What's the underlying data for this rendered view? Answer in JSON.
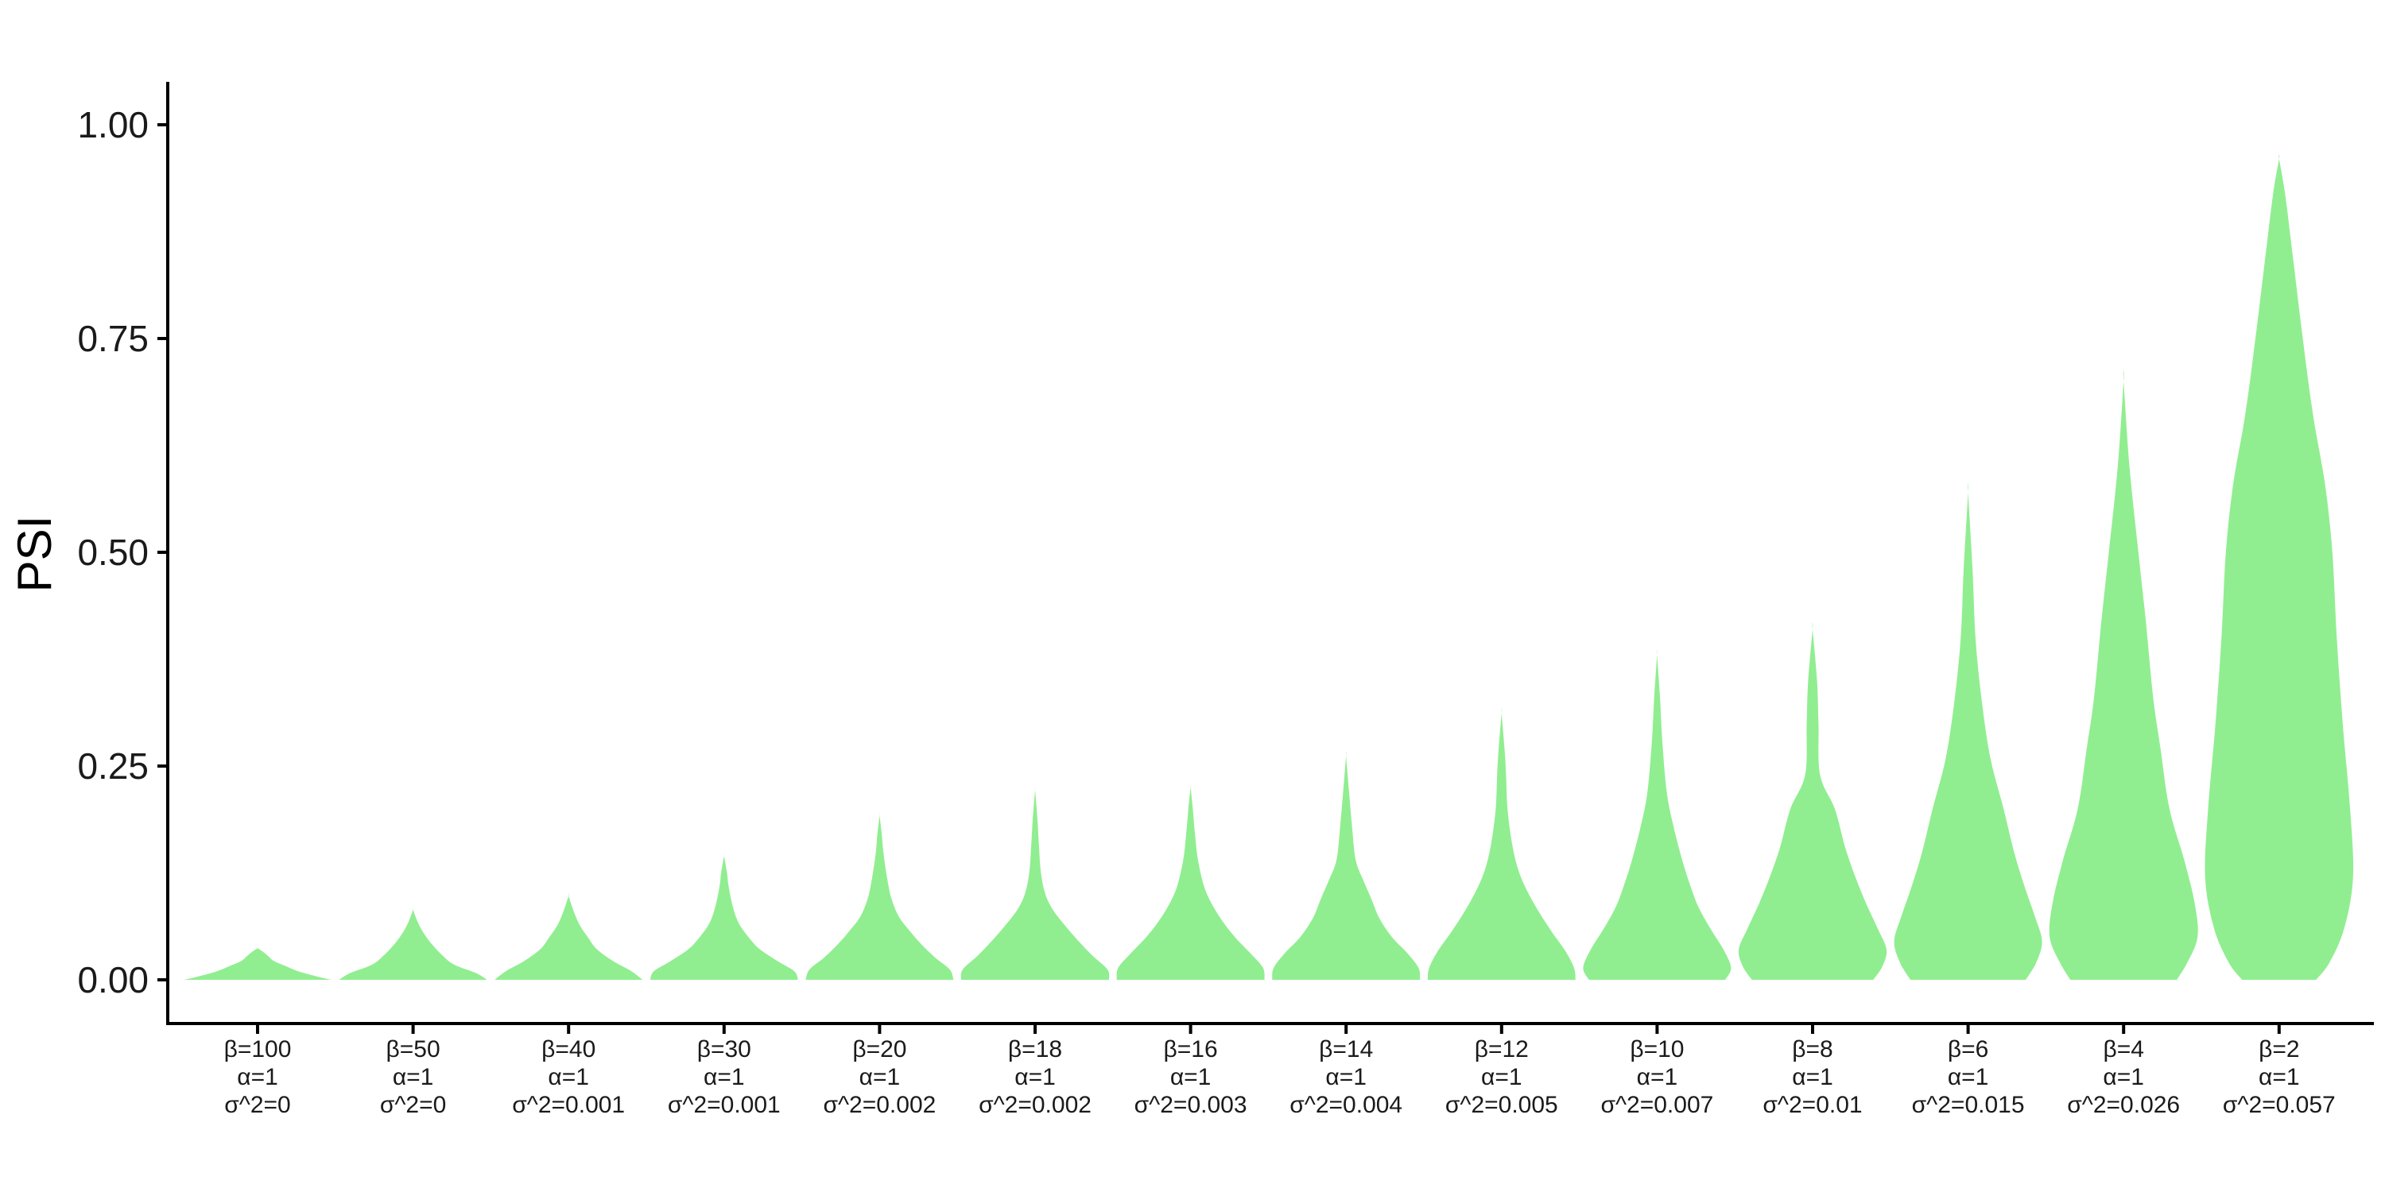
{
  "chart_data": {
    "type": "violin",
    "title": "",
    "xlabel": "",
    "ylabel": "PSI",
    "ylim": [
      -0.05,
      1.05
    ],
    "yticks": [
      0,
      0.25,
      0.5,
      0.75,
      1
    ],
    "ytick_labels": [
      "0.00",
      "0.25",
      "0.50",
      "0.75",
      "1.00"
    ],
    "fill_color": "#90EE90",
    "grid": false,
    "legend": "none",
    "categories": [
      {
        "line1": "β=100",
        "line2": "α=1",
        "line3": "σ^2=0"
      },
      {
        "line1": "β=50",
        "line2": "α=1",
        "line3": "σ^2=0"
      },
      {
        "line1": "β=40",
        "line2": "α=1",
        "line3": "σ^2=0.001"
      },
      {
        "line1": "β=30",
        "line2": "α=1",
        "line3": "σ^2=0.001"
      },
      {
        "line1": "β=20",
        "line2": "α=1",
        "line3": "σ^2=0.002"
      },
      {
        "line1": "β=18",
        "line2": "α=1",
        "line3": "σ^2=0.002"
      },
      {
        "line1": "β=16",
        "line2": "α=1",
        "line3": "σ^2=0.003"
      },
      {
        "line1": "β=14",
        "line2": "α=1",
        "line3": "σ^2=0.004"
      },
      {
        "line1": "β=12",
        "line2": "α=1",
        "line3": "σ^2=0.005"
      },
      {
        "line1": "β=10",
        "line2": "α=1",
        "line3": "σ^2=0.007"
      },
      {
        "line1": "β=8",
        "line2": "α=1",
        "line3": "σ^2=0.01"
      },
      {
        "line1": "β=6",
        "line2": "α=1",
        "line3": "σ^2=0.015"
      },
      {
        "line1": "β=4",
        "line2": "α=1",
        "line3": "σ^2=0.026"
      },
      {
        "line1": "β=2",
        "line2": "α=1",
        "line3": "σ^2=0.057"
      }
    ],
    "violins": [
      {
        "min": 0.0,
        "max": 0.037,
        "profile": [
          [
            0.0,
            1.0
          ],
          [
            0.004,
            0.8
          ],
          [
            0.01,
            0.55
          ],
          [
            0.016,
            0.38
          ],
          [
            0.022,
            0.22
          ],
          [
            0.028,
            0.14
          ],
          [
            0.033,
            0.07
          ],
          [
            0.037,
            0.0
          ]
        ]
      },
      {
        "min": 0.0,
        "max": 0.082,
        "profile": [
          [
            0.0,
            1.0
          ],
          [
            0.008,
            0.85
          ],
          [
            0.018,
            0.55
          ],
          [
            0.03,
            0.38
          ],
          [
            0.042,
            0.25
          ],
          [
            0.055,
            0.14
          ],
          [
            0.068,
            0.06
          ],
          [
            0.082,
            0.0
          ]
        ]
      },
      {
        "min": 0.0,
        "max": 0.098,
        "profile": [
          [
            0.0,
            1.0
          ],
          [
            0.01,
            0.85
          ],
          [
            0.022,
            0.6
          ],
          [
            0.036,
            0.38
          ],
          [
            0.05,
            0.26
          ],
          [
            0.064,
            0.15
          ],
          [
            0.08,
            0.07
          ],
          [
            0.098,
            0.0
          ]
        ]
      },
      {
        "min": 0.0,
        "max": 0.145,
        "profile": [
          [
            0.0,
            1.0
          ],
          [
            0.01,
            0.95
          ],
          [
            0.022,
            0.72
          ],
          [
            0.036,
            0.48
          ],
          [
            0.05,
            0.33
          ],
          [
            0.066,
            0.2
          ],
          [
            0.085,
            0.12
          ],
          [
            0.11,
            0.06
          ],
          [
            0.125,
            0.04
          ],
          [
            0.145,
            0.0
          ]
        ]
      },
      {
        "min": 0.0,
        "max": 0.192,
        "profile": [
          [
            0.0,
            1.0
          ],
          [
            0.012,
            0.95
          ],
          [
            0.026,
            0.75
          ],
          [
            0.042,
            0.56
          ],
          [
            0.058,
            0.4
          ],
          [
            0.074,
            0.26
          ],
          [
            0.095,
            0.16
          ],
          [
            0.12,
            0.1
          ],
          [
            0.15,
            0.05
          ],
          [
            0.17,
            0.03
          ],
          [
            0.192,
            0.0
          ]
        ]
      },
      {
        "min": 0.0,
        "max": 0.222,
        "profile": [
          [
            0.0,
            1.0
          ],
          [
            0.012,
            0.98
          ],
          [
            0.028,
            0.78
          ],
          [
            0.046,
            0.58
          ],
          [
            0.064,
            0.4
          ],
          [
            0.082,
            0.24
          ],
          [
            0.1,
            0.14
          ],
          [
            0.125,
            0.08
          ],
          [
            0.16,
            0.05
          ],
          [
            0.19,
            0.03
          ],
          [
            0.222,
            0.0
          ]
        ]
      },
      {
        "min": 0.0,
        "max": 0.225,
        "profile": [
          [
            0.0,
            1.0
          ],
          [
            0.014,
            0.98
          ],
          [
            0.03,
            0.82
          ],
          [
            0.05,
            0.6
          ],
          [
            0.07,
            0.42
          ],
          [
            0.09,
            0.28
          ],
          [
            0.11,
            0.18
          ],
          [
            0.14,
            0.1
          ],
          [
            0.17,
            0.06
          ],
          [
            0.2,
            0.03
          ],
          [
            0.225,
            0.0
          ]
        ]
      },
      {
        "min": 0.0,
        "max": 0.262,
        "profile": [
          [
            0.0,
            1.0
          ],
          [
            0.014,
            0.98
          ],
          [
            0.032,
            0.82
          ],
          [
            0.05,
            0.62
          ],
          [
            0.072,
            0.45
          ],
          [
            0.095,
            0.34
          ],
          [
            0.115,
            0.24
          ],
          [
            0.14,
            0.13
          ],
          [
            0.18,
            0.08
          ],
          [
            0.22,
            0.04
          ],
          [
            0.262,
            0.0
          ]
        ]
      },
      {
        "min": 0.0,
        "max": 0.312,
        "profile": [
          [
            0.0,
            1.0
          ],
          [
            0.014,
            0.98
          ],
          [
            0.034,
            0.86
          ],
          [
            0.056,
            0.68
          ],
          [
            0.08,
            0.5
          ],
          [
            0.105,
            0.34
          ],
          [
            0.13,
            0.22
          ],
          [
            0.16,
            0.14
          ],
          [
            0.2,
            0.08
          ],
          [
            0.24,
            0.06
          ],
          [
            0.27,
            0.04
          ],
          [
            0.312,
            0.0
          ]
        ]
      },
      {
        "min": 0.0,
        "max": 0.38,
        "profile": [
          [
            0.0,
            0.92
          ],
          [
            0.014,
            1.0
          ],
          [
            0.035,
            0.9
          ],
          [
            0.06,
            0.72
          ],
          [
            0.085,
            0.56
          ],
          [
            0.11,
            0.45
          ],
          [
            0.14,
            0.34
          ],
          [
            0.18,
            0.22
          ],
          [
            0.22,
            0.13
          ],
          [
            0.28,
            0.07
          ],
          [
            0.33,
            0.04
          ],
          [
            0.38,
            0.0
          ]
        ]
      },
      {
        "min": 0.0,
        "max": 0.41,
        "profile": [
          [
            0.0,
            0.82
          ],
          [
            0.015,
            0.94
          ],
          [
            0.035,
            1.0
          ],
          [
            0.06,
            0.88
          ],
          [
            0.09,
            0.72
          ],
          [
            0.12,
            0.58
          ],
          [
            0.155,
            0.44
          ],
          [
            0.2,
            0.3
          ],
          [
            0.24,
            0.1
          ],
          [
            0.3,
            0.08
          ],
          [
            0.35,
            0.06
          ],
          [
            0.41,
            0.0
          ]
        ]
      },
      {
        "min": 0.0,
        "max": 0.57,
        "profile": [
          [
            0.0,
            0.78
          ],
          [
            0.02,
            0.92
          ],
          [
            0.045,
            1.0
          ],
          [
            0.075,
            0.9
          ],
          [
            0.11,
            0.76
          ],
          [
            0.15,
            0.62
          ],
          [
            0.2,
            0.48
          ],
          [
            0.26,
            0.3
          ],
          [
            0.33,
            0.18
          ],
          [
            0.4,
            0.1
          ],
          [
            0.48,
            0.06
          ],
          [
            0.57,
            0.0
          ]
        ]
      },
      {
        "min": 0.0,
        "max": 0.7,
        "profile": [
          [
            0.0,
            0.72
          ],
          [
            0.02,
            0.86
          ],
          [
            0.05,
            1.0
          ],
          [
            0.09,
            0.96
          ],
          [
            0.14,
            0.82
          ],
          [
            0.2,
            0.62
          ],
          [
            0.27,
            0.5
          ],
          [
            0.33,
            0.4
          ],
          [
            0.42,
            0.3
          ],
          [
            0.5,
            0.2
          ],
          [
            0.6,
            0.08
          ],
          [
            0.7,
            0.0
          ]
        ]
      },
      {
        "min": 0.0,
        "max": 0.96,
        "profile": [
          [
            0.0,
            0.5
          ],
          [
            0.02,
            0.68
          ],
          [
            0.06,
            0.88
          ],
          [
            0.12,
            1.0
          ],
          [
            0.2,
            0.96
          ],
          [
            0.3,
            0.86
          ],
          [
            0.4,
            0.78
          ],
          [
            0.5,
            0.72
          ],
          [
            0.58,
            0.62
          ],
          [
            0.66,
            0.46
          ],
          [
            0.75,
            0.32
          ],
          [
            0.85,
            0.18
          ],
          [
            0.92,
            0.08
          ],
          [
            0.96,
            0.0
          ]
        ]
      }
    ]
  }
}
